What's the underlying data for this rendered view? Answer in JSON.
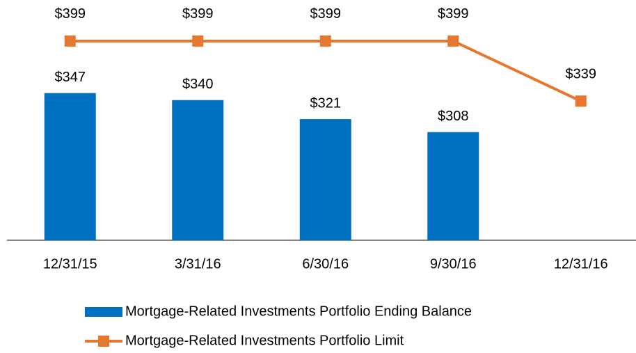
{
  "chart_data": {
    "type": "bar-line",
    "categories": [
      "12/31/15",
      "3/31/16",
      "6/30/16",
      "9/30/16",
      "12/31/16"
    ],
    "ylim": [
      200,
      440
    ],
    "series": [
      {
        "name": "Mortgage-Related Investments Portfolio Ending Balance",
        "type": "bar",
        "color": "#0070c0",
        "values": [
          347,
          340,
          321,
          308,
          null
        ],
        "value_labels": [
          "$347",
          "$340",
          "$321",
          "$308",
          null
        ]
      },
      {
        "name": "Mortgage-Related Investments Portfolio Limit",
        "type": "line",
        "color": "#e8772e",
        "values": [
          399,
          399,
          399,
          399,
          339
        ],
        "value_labels": [
          "$399",
          "$399",
          "$399",
          "$399",
          "$339"
        ]
      }
    ]
  }
}
